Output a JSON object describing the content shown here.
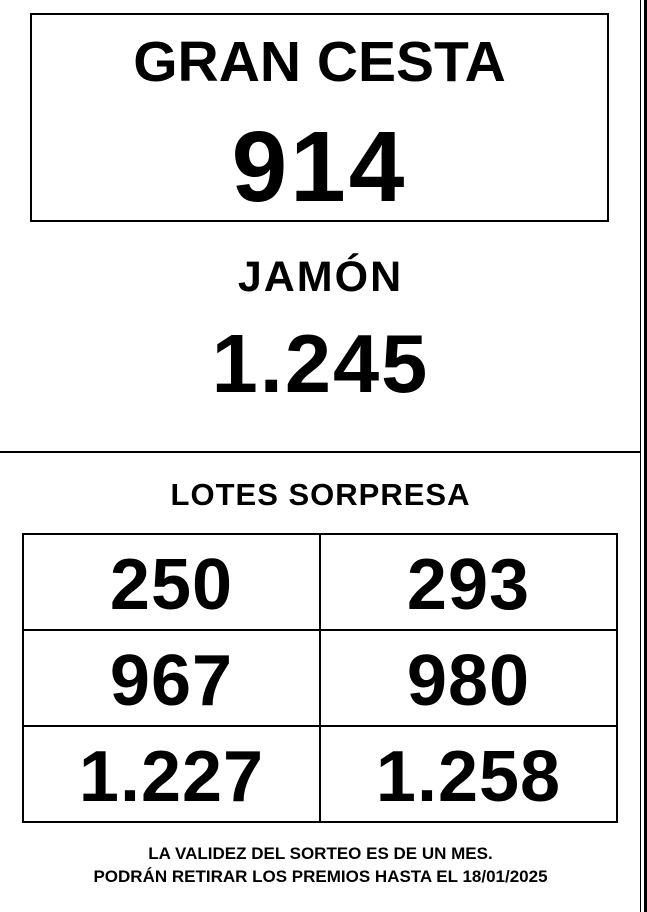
{
  "colors": {
    "text": "#000000",
    "background": "#ffffff",
    "border": "#000000"
  },
  "top_box": {
    "title": "GRAN CESTA",
    "number": "914"
  },
  "jamon": {
    "title": "JAMÓN",
    "number": "1.245"
  },
  "lotes": {
    "title": "LOTES SORPRESA",
    "rows": [
      {
        "left": "250",
        "right": "293"
      },
      {
        "left": "967",
        "right": "980"
      },
      {
        "left": "1.227",
        "right": "1.258"
      }
    ]
  },
  "footer": {
    "line1": "LA VALIDEZ DEL SORTEO ES DE UN MES.",
    "line2": "PODRÁN RETIRAR LOS PREMIOS HASTA EL 18/01/2025"
  }
}
